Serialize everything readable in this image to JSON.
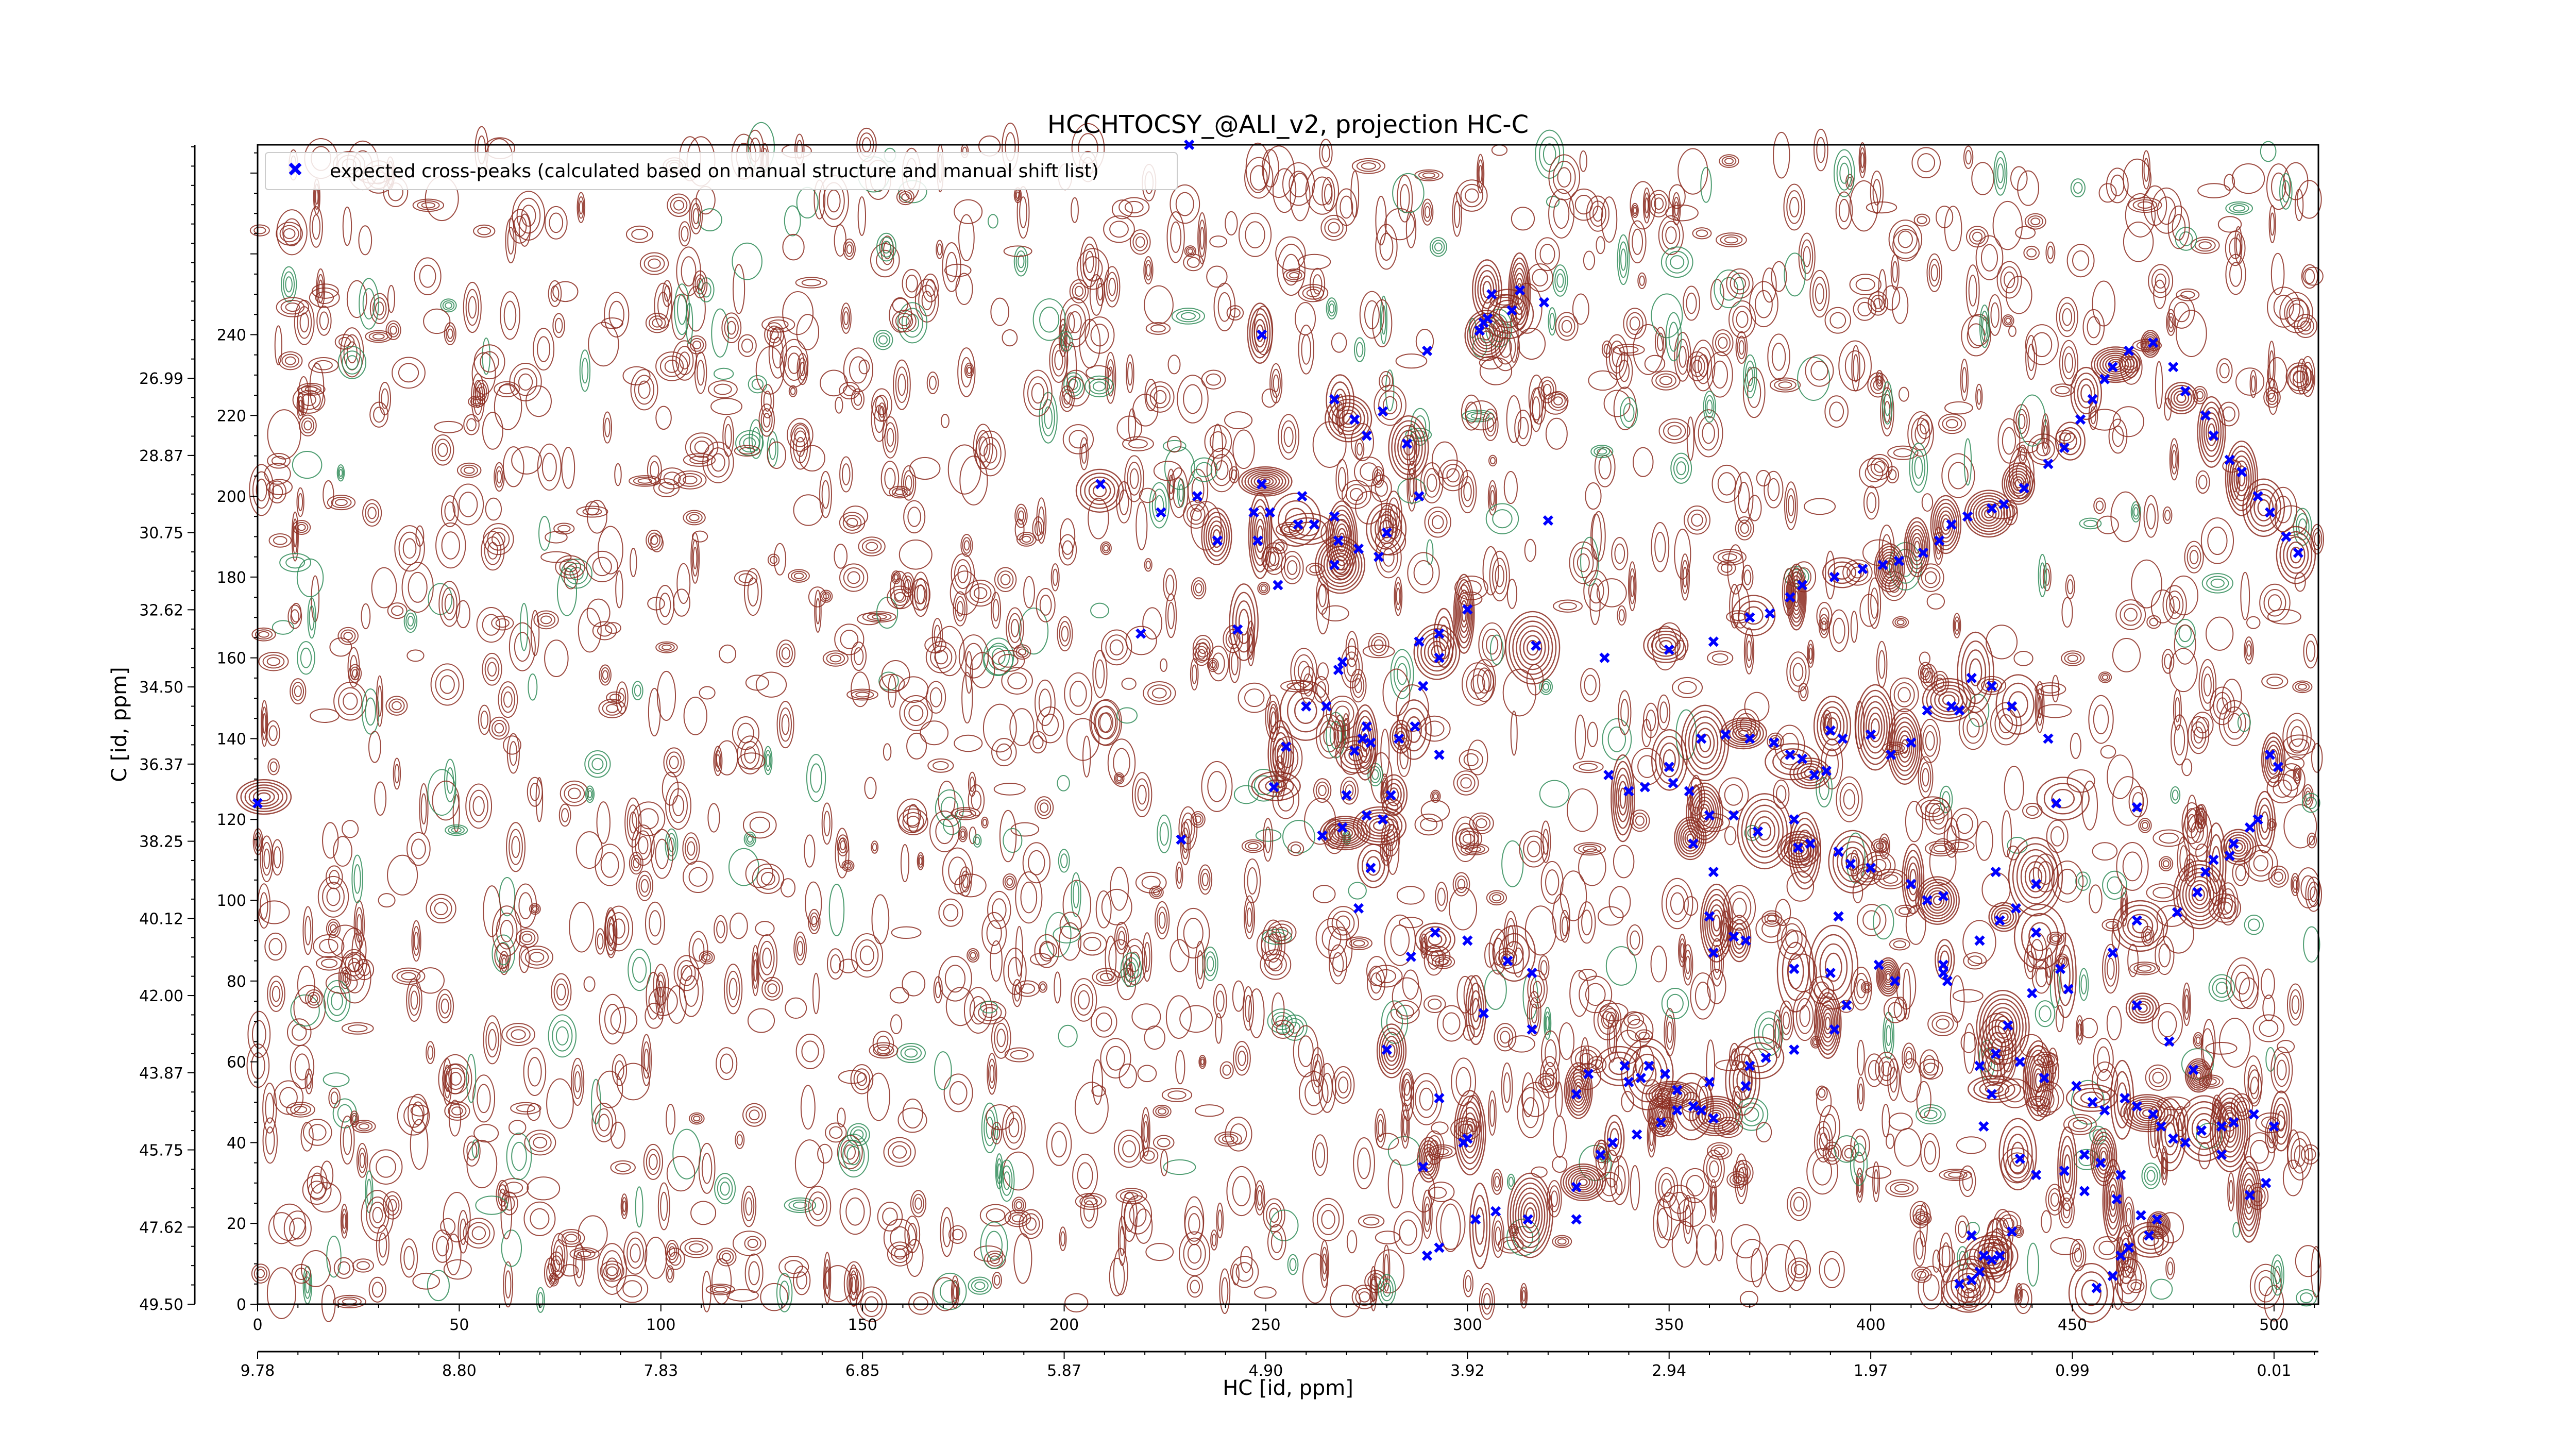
{
  "chart_data": {
    "type": "scatter",
    "title": "HCCHTOCSY_@ALI_v2, projection HC-C",
    "xlabel": "HC [id, ppm]",
    "ylabel": "C [id, ppm]",
    "xlim": [
      0,
      511
    ],
    "ylim": [
      0,
      287
    ],
    "x_index_ticks": [
      0,
      50,
      100,
      150,
      200,
      250,
      300,
      350,
      400,
      450,
      500
    ],
    "x_ppm_ticks": [
      {
        "x": 0,
        "label": "9.78"
      },
      {
        "x": 50,
        "label": "8.80"
      },
      {
        "x": 100,
        "label": "7.83"
      },
      {
        "x": 150,
        "label": "6.85"
      },
      {
        "x": 200,
        "label": "5.87"
      },
      {
        "x": 250,
        "label": "4.90"
      },
      {
        "x": 300,
        "label": "3.92"
      },
      {
        "x": 350,
        "label": "2.94"
      },
      {
        "x": 400,
        "label": "1.97"
      },
      {
        "x": 450,
        "label": "0.99"
      },
      {
        "x": 500,
        "label": "0.01"
      }
    ],
    "y_index_ticks": [
      0,
      20,
      40,
      60,
      80,
      100,
      120,
      140,
      160,
      180,
      200,
      220,
      240
    ],
    "y_ppm_ticks": [
      {
        "y": 0,
        "label": "49.50"
      },
      {
        "y": 19.1,
        "label": "47.62"
      },
      {
        "y": 38.2,
        "label": "45.75"
      },
      {
        "y": 57.3,
        "label": "43.87"
      },
      {
        "y": 76.4,
        "label": "42.00"
      },
      {
        "y": 95.5,
        "label": "40.12"
      },
      {
        "y": 114.6,
        "label": "38.25"
      },
      {
        "y": 133.7,
        "label": "36.37"
      },
      {
        "y": 152.8,
        "label": "34.50"
      },
      {
        "y": 171.9,
        "label": "32.62"
      },
      {
        "y": 191.0,
        "label": "30.75"
      },
      {
        "y": 210.1,
        "label": "28.87"
      },
      {
        "y": 229.2,
        "label": "26.99"
      }
    ],
    "legend": {
      "position": "top-left",
      "entries": [
        "expected cross-peaks (calculated based on manual structure and manual shift list)"
      ]
    },
    "series": [
      {
        "name": "expected cross-peaks (calculated based on manual structure and manual shift list)",
        "color": "#0000ff",
        "marker": "x",
        "points": [
          [
            0,
            124
          ],
          [
            231,
            287
          ],
          [
            249,
            240
          ],
          [
            233,
            200
          ],
          [
            238,
            189
          ],
          [
            247,
            196
          ],
          [
            249,
            203
          ],
          [
            251,
            196
          ],
          [
            248,
            189
          ],
          [
            253,
            178
          ],
          [
            243,
            167
          ],
          [
            219,
            166
          ],
          [
            209,
            203
          ],
          [
            224,
            196
          ],
          [
            258,
            193
          ],
          [
            259,
            200
          ],
          [
            262,
            193
          ],
          [
            267,
            195
          ],
          [
            268,
            189
          ],
          [
            273,
            187
          ],
          [
            280,
            191
          ],
          [
            278,
            185
          ],
          [
            267,
            183
          ],
          [
            269,
            159
          ],
          [
            260,
            148
          ],
          [
            268,
            157
          ],
          [
            272,
            137
          ],
          [
            275,
            143
          ],
          [
            276,
            139
          ],
          [
            270,
            126
          ],
          [
            287,
            143
          ],
          [
            289,
            153
          ],
          [
            293,
            160
          ],
          [
            288,
            164
          ],
          [
            293,
            166
          ],
          [
            293,
            136
          ],
          [
            300,
            172
          ],
          [
            288,
            200
          ],
          [
            285,
            213
          ],
          [
            279,
            221
          ],
          [
            272,
            219
          ],
          [
            275,
            215
          ],
          [
            267,
            224
          ],
          [
            290,
            236
          ],
          [
            303,
            241
          ],
          [
            304,
            243
          ],
          [
            306,
            250
          ],
          [
            305,
            244
          ],
          [
            311,
            246
          ],
          [
            319,
            248
          ],
          [
            313,
            251
          ],
          [
            320,
            194
          ],
          [
            317,
            163
          ],
          [
            334,
            160
          ],
          [
            255,
            138
          ],
          [
            274,
            140
          ],
          [
            281,
            126
          ],
          [
            265,
            148
          ],
          [
            283,
            140
          ],
          [
            275,
            121
          ],
          [
            269,
            118
          ],
          [
            264,
            116
          ],
          [
            252,
            128
          ],
          [
            229,
            115
          ],
          [
            279,
            120
          ],
          [
            273,
            98
          ],
          [
            276,
            108
          ],
          [
            286,
            86
          ],
          [
            292,
            92
          ],
          [
            300,
            90
          ],
          [
            310,
            85
          ],
          [
            316,
            82
          ],
          [
            304,
            72
          ],
          [
            316,
            68
          ],
          [
            327,
            52
          ],
          [
            340,
            55
          ],
          [
            343,
            56
          ],
          [
            349,
            57
          ],
          [
            356,
            49
          ],
          [
            358,
            48
          ],
          [
            361,
            46
          ],
          [
            345,
            59
          ],
          [
            339,
            59
          ],
          [
            330,
            57
          ],
          [
            280,
            63
          ],
          [
            293,
            51
          ],
          [
            289,
            34
          ],
          [
            299,
            40
          ],
          [
            300,
            41
          ],
          [
            290,
            12
          ],
          [
            382,
            113
          ],
          [
            392,
            96
          ],
          [
            381,
            83
          ],
          [
            369,
            90
          ],
          [
            366,
            91
          ],
          [
            361,
            87
          ],
          [
            360,
            96
          ],
          [
            361,
            107
          ],
          [
            356,
            114
          ],
          [
            351,
            129
          ],
          [
            358,
            140
          ],
          [
            364,
            141
          ],
          [
            370,
            140
          ],
          [
            376,
            139
          ],
          [
            380,
            136
          ],
          [
            383,
            135
          ],
          [
            386,
            131
          ],
          [
            389,
            132
          ],
          [
            390,
            142
          ],
          [
            393,
            140
          ],
          [
            400,
            141
          ],
          [
            405,
            136
          ],
          [
            410,
            139
          ],
          [
            414,
            147
          ],
          [
            420,
            148
          ],
          [
            422,
            147
          ],
          [
            425,
            155
          ],
          [
            430,
            153
          ],
          [
            435,
            148
          ],
          [
            444,
            140
          ],
          [
            446,
            124
          ],
          [
            431,
            107
          ],
          [
            441,
            92
          ],
          [
            449,
            78
          ],
          [
            447,
            83
          ],
          [
            440,
            77
          ],
          [
            434,
            69
          ],
          [
            418,
            82
          ],
          [
            418,
            84
          ],
          [
            419,
            80
          ],
          [
            406,
            80
          ],
          [
            402,
            84
          ],
          [
            390,
            82
          ],
          [
            394,
            74
          ],
          [
            391,
            68
          ],
          [
            381,
            63
          ],
          [
            374,
            61
          ],
          [
            370,
            59
          ],
          [
            369,
            54
          ],
          [
            360,
            55
          ],
          [
            352,
            53
          ],
          [
            352,
            48
          ],
          [
            348,
            45
          ],
          [
            342,
            42
          ],
          [
            336,
            40
          ],
          [
            333,
            37
          ],
          [
            327,
            29
          ],
          [
            327,
            21
          ],
          [
            315,
            21
          ],
          [
            307,
            23
          ],
          [
            302,
            21
          ],
          [
            293,
            14
          ],
          [
            428,
            12
          ],
          [
            425,
            17
          ],
          [
            432,
            12
          ],
          [
            435,
            18
          ],
          [
            430,
            11
          ],
          [
            427,
            8
          ],
          [
            425,
            6
          ],
          [
            422,
            5
          ],
          [
            456,
            4
          ],
          [
            460,
            7
          ],
          [
            462,
            12
          ],
          [
            464,
            14
          ],
          [
            469,
            17
          ],
          [
            453,
            28
          ],
          [
            461,
            26
          ],
          [
            467,
            22
          ],
          [
            471,
            21
          ],
          [
            462,
            32
          ],
          [
            457,
            35
          ],
          [
            453,
            37
          ],
          [
            448,
            33
          ],
          [
            441,
            32
          ],
          [
            437,
            36
          ],
          [
            428,
            44
          ],
          [
            430,
            52
          ],
          [
            427,
            59
          ],
          [
            431,
            62
          ],
          [
            437,
            60
          ],
          [
            443,
            56
          ],
          [
            451,
            54
          ],
          [
            455,
            50
          ],
          [
            458,
            48
          ],
          [
            463,
            51
          ],
          [
            466,
            49
          ],
          [
            470,
            47
          ],
          [
            472,
            44
          ],
          [
            475,
            41
          ],
          [
            478,
            40
          ],
          [
            482,
            43
          ],
          [
            487,
            44
          ],
          [
            490,
            45
          ],
          [
            495,
            47
          ],
          [
            500,
            44
          ],
          [
            498,
            30
          ],
          [
            494,
            27
          ],
          [
            487,
            37
          ],
          [
            480,
            58
          ],
          [
            474,
            65
          ],
          [
            466,
            74
          ],
          [
            460,
            87
          ],
          [
            466,
            95
          ],
          [
            476,
            97
          ],
          [
            481,
            102
          ],
          [
            483,
            107
          ],
          [
            485,
            110
          ],
          [
            489,
            111
          ],
          [
            490,
            114
          ],
          [
            494,
            118
          ],
          [
            496,
            120
          ],
          [
            501,
            133
          ],
          [
            499,
            136
          ],
          [
            466,
            123
          ],
          [
            441,
            104
          ],
          [
            436,
            98
          ],
          [
            432,
            95
          ],
          [
            427,
            90
          ],
          [
            418,
            101
          ],
          [
            414,
            100
          ],
          [
            410,
            104
          ],
          [
            400,
            108
          ],
          [
            395,
            109
          ],
          [
            392,
            112
          ],
          [
            385,
            114
          ],
          [
            381,
            120
          ],
          [
            372,
            117
          ],
          [
            366,
            121
          ],
          [
            360,
            121
          ],
          [
            355,
            127
          ],
          [
            350,
            133
          ],
          [
            344,
            128
          ],
          [
            340,
            127
          ],
          [
            335,
            131
          ],
          [
            350,
            162
          ],
          [
            361,
            164
          ],
          [
            370,
            170
          ],
          [
            375,
            171
          ],
          [
            380,
            175
          ],
          [
            383,
            178
          ],
          [
            391,
            180
          ],
          [
            398,
            182
          ],
          [
            403,
            183
          ],
          [
            407,
            184
          ],
          [
            413,
            186
          ],
          [
            417,
            189
          ],
          [
            420,
            193
          ],
          [
            424,
            195
          ],
          [
            430,
            197
          ],
          [
            433,
            198
          ],
          [
            438,
            202
          ],
          [
            444,
            208
          ],
          [
            448,
            212
          ],
          [
            452,
            219
          ],
          [
            455,
            224
          ],
          [
            458,
            229
          ],
          [
            460,
            232
          ],
          [
            464,
            236
          ],
          [
            470,
            238
          ],
          [
            475,
            232
          ],
          [
            478,
            226
          ],
          [
            483,
            220
          ],
          [
            485,
            215
          ],
          [
            489,
            209
          ],
          [
            492,
            206
          ],
          [
            496,
            200
          ],
          [
            499,
            196
          ],
          [
            503,
            190
          ],
          [
            506,
            186
          ]
        ]
      }
    ],
    "contours": {
      "positive_color": "#8b2a1e",
      "negative_color": "#2e8b57"
    }
  }
}
